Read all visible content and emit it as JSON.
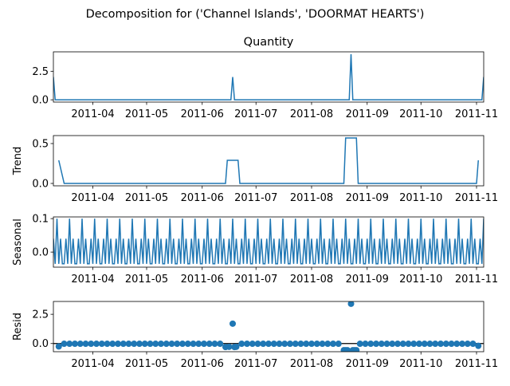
{
  "figure": {
    "suptitle": "Decomposition for ('Channel Islands', 'DOORMAT HEARTS')",
    "line_color": "#1f77b4",
    "axes_color": "#000000"
  },
  "chart_data": [
    {
      "type": "line",
      "panel": "observed",
      "title": "Quantity",
      "ylabel": "",
      "x_start": "2011-03-10",
      "x_end": "2011-11-05",
      "xlim": [
        "2011-03-10",
        "2011-11-05"
      ],
      "ylim": [
        -0.2,
        4.2
      ],
      "yticks": [
        0.0,
        2.5
      ],
      "ytick_labels": [
        "0.0",
        "2.5"
      ],
      "xticks": [
        "2011-04-01",
        "2011-05-01",
        "2011-06-01",
        "2011-07-01",
        "2011-08-01",
        "2011-09-01",
        "2011-10-01",
        "2011-11-01"
      ],
      "xtick_labels": [
        "2011-04",
        "2011-05",
        "2011-06",
        "2011-07",
        "2011-08",
        "2011-09",
        "2011-10",
        "2011-11"
      ],
      "points": [
        {
          "x": "2011-03-10",
          "y": 2.0
        },
        {
          "x": "2011-03-11",
          "y": 0.0
        },
        {
          "x": "2011-06-17",
          "y": 0.0
        },
        {
          "x": "2011-06-18",
          "y": 2.0
        },
        {
          "x": "2011-06-19",
          "y": 0.0
        },
        {
          "x": "2011-08-22",
          "y": 0.0
        },
        {
          "x": "2011-08-23",
          "y": 4.0
        },
        {
          "x": "2011-08-24",
          "y": 0.0
        },
        {
          "x": "2011-11-04",
          "y": 0.0
        },
        {
          "x": "2011-11-05",
          "y": 2.0
        }
      ]
    },
    {
      "type": "line",
      "panel": "trend",
      "title": "",
      "ylabel": "Trend",
      "xlim": [
        "2011-03-10",
        "2011-11-05"
      ],
      "ylim": [
        -0.03,
        0.6
      ],
      "yticks": [
        0.0,
        0.5
      ],
      "ytick_labels": [
        "0.0",
        "0.5"
      ],
      "xticks": [
        "2011-04-01",
        "2011-05-01",
        "2011-06-01",
        "2011-07-01",
        "2011-08-01",
        "2011-09-01",
        "2011-10-01",
        "2011-11-01"
      ],
      "xtick_labels": [
        "2011-04",
        "2011-05",
        "2011-06",
        "2011-07",
        "2011-08",
        "2011-09",
        "2011-10",
        "2011-11"
      ],
      "points": [
        {
          "x": "2011-03-13",
          "y": 0.29
        },
        {
          "x": "2011-03-16",
          "y": 0.0
        },
        {
          "x": "2011-06-14",
          "y": 0.0
        },
        {
          "x": "2011-06-15",
          "y": 0.29
        },
        {
          "x": "2011-06-21",
          "y": 0.29
        },
        {
          "x": "2011-06-22",
          "y": 0.0
        },
        {
          "x": "2011-08-19",
          "y": 0.0
        },
        {
          "x": "2011-08-20",
          "y": 0.57
        },
        {
          "x": "2011-08-26",
          "y": 0.57
        },
        {
          "x": "2011-08-27",
          "y": 0.0
        },
        {
          "x": "2011-11-01",
          "y": 0.0
        },
        {
          "x": "2011-11-02",
          "y": 0.29
        }
      ]
    },
    {
      "type": "line",
      "panel": "seasonal",
      "title": "",
      "ylabel": "Seasonal",
      "xlim": [
        "2011-03-10",
        "2011-11-05"
      ],
      "ylim": [
        -0.045,
        0.105
      ],
      "yticks": [
        0.0,
        0.1
      ],
      "ytick_labels": [
        "0.0",
        "0.1"
      ],
      "xticks": [
        "2011-04-01",
        "2011-05-01",
        "2011-06-01",
        "2011-07-01",
        "2011-08-01",
        "2011-09-01",
        "2011-10-01",
        "2011-11-01"
      ],
      "xtick_labels": [
        "2011-04",
        "2011-05",
        "2011-06",
        "2011-07",
        "2011-08",
        "2011-09",
        "2011-10",
        "2011-11"
      ],
      "period_days": 7,
      "cycle_values": [
        0.04,
        -0.035,
        0.1,
        -0.035,
        0.04,
        -0.035,
        -0.035
      ]
    },
    {
      "type": "scatter",
      "panel": "resid",
      "title": "",
      "ylabel": "Resid",
      "xlim": [
        "2011-03-10",
        "2011-11-05"
      ],
      "ylim": [
        -0.7,
        3.6
      ],
      "yticks": [
        0.0,
        2.5
      ],
      "ytick_labels": [
        "0.0",
        "2.5"
      ],
      "xticks": [
        "2011-04-01",
        "2011-05-01",
        "2011-06-01",
        "2011-07-01",
        "2011-08-01",
        "2011-09-01",
        "2011-10-01",
        "2011-11-01"
      ],
      "xtick_labels": [
        "2011-04",
        "2011-05",
        "2011-06",
        "2011-07",
        "2011-08",
        "2011-09",
        "2011-10",
        "2011-11"
      ],
      "zero_line": true,
      "baseline_points": {
        "x_start": "2011-03-13",
        "x_end": "2011-11-02",
        "step_days": 3,
        "y": -0.02
      },
      "points": [
        {
          "x": "2011-03-13",
          "y": -0.25
        },
        {
          "x": "2011-06-14",
          "y": -0.3
        },
        {
          "x": "2011-06-16",
          "y": -0.28
        },
        {
          "x": "2011-06-18",
          "y": 1.7
        },
        {
          "x": "2011-06-19",
          "y": -0.3
        },
        {
          "x": "2011-06-20",
          "y": -0.28
        },
        {
          "x": "2011-08-19",
          "y": -0.57
        },
        {
          "x": "2011-08-20",
          "y": -0.57
        },
        {
          "x": "2011-08-21",
          "y": -0.57
        },
        {
          "x": "2011-08-23",
          "y": 3.4
        },
        {
          "x": "2011-08-24",
          "y": -0.57
        },
        {
          "x": "2011-08-25",
          "y": -0.57
        },
        {
          "x": "2011-08-26",
          "y": -0.57
        },
        {
          "x": "2011-11-02",
          "y": -0.2
        }
      ]
    }
  ]
}
